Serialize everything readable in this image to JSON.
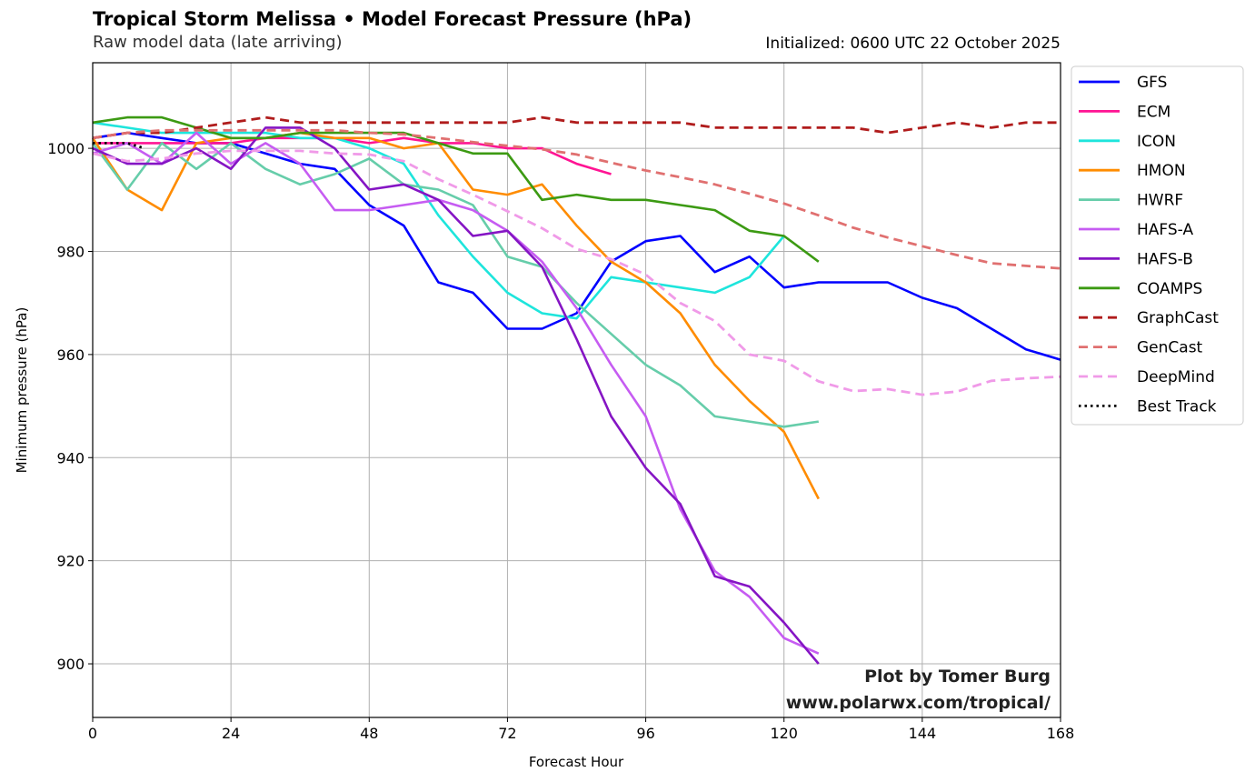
{
  "header": {
    "title": "Tropical Storm Melissa • Model Forecast Pressure (hPa)",
    "subtitle_left": "Raw model data (late arriving)",
    "subtitle_right": "Initialized: 0600 UTC 22 October 2025"
  },
  "watermark": {
    "line1": "Plot by Tomer Burg",
    "line2": "www.polarwx.com/tropical/"
  },
  "chart_data": {
    "type": "line",
    "title": "Tropical Storm Melissa • Model Forecast Pressure (hPa)",
    "subtitle": "Raw model data (late arriving)",
    "annotation": "Initialized: 0600 UTC 22 October 2025",
    "xlabel": "Forecast Hour",
    "ylabel": "Minimum pressure (hPa)",
    "xlim": [
      0,
      168
    ],
    "ylim": [
      889.6,
      1016.6
    ],
    "xticks": [
      0,
      24,
      48,
      72,
      96,
      120,
      144,
      168
    ],
    "yticks": [
      900,
      920,
      940,
      960,
      980,
      1000
    ],
    "grid": true,
    "legend_position": "outside-right-top",
    "series": [
      {
        "name": "GFS",
        "color": "#0000ff",
        "dash": "solid",
        "x": [
          0,
          6,
          12,
          18,
          24,
          30,
          36,
          42,
          48,
          54,
          60,
          66,
          72,
          78,
          84,
          90,
          96,
          102,
          108,
          114,
          120,
          126,
          132,
          138,
          144,
          150,
          156,
          162,
          168
        ],
        "y": [
          1002,
          1003,
          1002,
          1001,
          1001,
          999,
          997,
          996,
          989,
          985,
          974,
          972,
          965,
          965,
          968,
          978,
          982,
          983,
          976,
          979,
          973,
          974,
          974,
          974,
          971,
          969,
          965,
          961,
          959
        ]
      },
      {
        "name": "ECM",
        "color": "#ff1493",
        "dash": "solid",
        "x": [
          0,
          6,
          12,
          18,
          24,
          30,
          36,
          42,
          48,
          54,
          60,
          66,
          72,
          78,
          84,
          90
        ],
        "y": [
          1001,
          1001,
          1001,
          1001,
          1001,
          1002,
          1002,
          1002,
          1001,
          1002,
          1001,
          1001,
          1000,
          1000,
          997,
          995
        ]
      },
      {
        "name": "ICON",
        "color": "#1ee5dc",
        "dash": "solid",
        "x": [
          0,
          6,
          12,
          18,
          24,
          30,
          36,
          42,
          48,
          54,
          60,
          66,
          72,
          78,
          84,
          90,
          96,
          102,
          108,
          114,
          120
        ],
        "y": [
          1005,
          1004,
          1003,
          1003,
          1003,
          1003,
          1002,
          1002,
          1000,
          997,
          987,
          979,
          972,
          968,
          967,
          975,
          974,
          973,
          972,
          975,
          983
        ]
      },
      {
        "name": "HMON",
        "color": "#ff8c00",
        "dash": "solid",
        "x": [
          0,
          6,
          12,
          18,
          24,
          30,
          36,
          42,
          48,
          54,
          60,
          66,
          72,
          78,
          84,
          90,
          96,
          102,
          108,
          114,
          120,
          126
        ],
        "y": [
          1002,
          992,
          988,
          1001,
          1002,
          1002,
          1003,
          1002,
          1002,
          1000,
          1001,
          992,
          991,
          993,
          985,
          978,
          974,
          968,
          958,
          951,
          945,
          932
        ]
      },
      {
        "name": "HWRF",
        "color": "#66cdaa",
        "dash": "solid",
        "x": [
          0,
          6,
          12,
          18,
          24,
          30,
          36,
          42,
          48,
          54,
          60,
          66,
          72,
          78,
          84,
          90,
          96,
          102,
          108,
          114,
          120,
          126
        ],
        "y": [
          1001,
          992,
          1001,
          996,
          1001,
          996,
          993,
          995,
          998,
          993,
          992,
          989,
          979,
          977,
          970,
          964,
          958,
          954,
          948,
          947,
          946,
          947
        ]
      },
      {
        "name": "HAFS-A",
        "color": "#c65cf2",
        "dash": "solid",
        "x": [
          0,
          6,
          12,
          18,
          24,
          30,
          36,
          42,
          48,
          54,
          60,
          66,
          72,
          78,
          84,
          90,
          96,
          102,
          108,
          114,
          120,
          126
        ],
        "y": [
          999,
          1001,
          997,
          1003,
          997,
          1001,
          997,
          988,
          988,
          989,
          990,
          988,
          984,
          978,
          969,
          958,
          948,
          930,
          918,
          913,
          905,
          902
        ]
      },
      {
        "name": "HAFS-B",
        "color": "#8515c4",
        "dash": "solid",
        "x": [
          0,
          6,
          12,
          18,
          24,
          30,
          36,
          42,
          48,
          54,
          60,
          66,
          72,
          78,
          84,
          90,
          96,
          102,
          108,
          114,
          120,
          126
        ],
        "y": [
          1000,
          997,
          997,
          1000,
          996,
          1004,
          1004,
          1000,
          992,
          993,
          990,
          983,
          984,
          977,
          963,
          948,
          938,
          931,
          917,
          915,
          908,
          900
        ]
      },
      {
        "name": "COAMPS",
        "color": "#3c9a13",
        "dash": "solid",
        "x": [
          0,
          6,
          12,
          18,
          24,
          30,
          36,
          42,
          48,
          54,
          60,
          66,
          72,
          78,
          84,
          90,
          96,
          102,
          108,
          114,
          120,
          126
        ],
        "y": [
          1005,
          1006,
          1006,
          1004,
          1002,
          1002,
          1003,
          1003,
          1003,
          1003,
          1001,
          999,
          999,
          990,
          991,
          990,
          990,
          989,
          988,
          984,
          983,
          978
        ]
      },
      {
        "name": "GraphCast",
        "color": "#b01c1c",
        "dash": "dashed",
        "x": [
          0,
          6,
          12,
          18,
          24,
          30,
          36,
          42,
          48,
          54,
          60,
          66,
          72,
          78,
          84,
          90,
          96,
          102,
          108,
          114,
          120,
          126,
          132,
          138,
          144,
          150,
          156,
          162,
          168
        ],
        "y": [
          1002,
          1003,
          1003,
          1004,
          1005,
          1006,
          1005,
          1005,
          1005,
          1005,
          1005,
          1005,
          1005,
          1006,
          1005,
          1005,
          1005,
          1005,
          1004,
          1004,
          1004,
          1004,
          1004,
          1003,
          1004,
          1005,
          1004,
          1005,
          1005
        ]
      },
      {
        "name": "GenCast",
        "color": "#e07070",
        "dash": "dashed",
        "x": [
          0,
          6,
          12,
          18,
          24,
          30,
          36,
          42,
          48,
          54,
          60,
          66,
          72,
          78,
          84,
          90,
          96,
          102,
          108,
          114,
          120,
          126,
          132,
          138,
          144,
          150,
          156,
          162,
          168
        ],
        "y": [
          1002,
          1003,
          1003.5,
          1003.5,
          1003.5,
          1003.5,
          1003.5,
          1003.5,
          1003,
          1002.7,
          1002,
          1001.2,
          1000.5,
          999.8,
          998.8,
          997.2,
          995.7,
          994.4,
          993,
          991.2,
          989.3,
          987,
          984.6,
          982.7,
          981,
          979.3,
          977.7,
          977.2,
          976.7
        ]
      },
      {
        "name": "DeepMind",
        "color": "#f09ae8",
        "dash": "dashed",
        "x": [
          0,
          6,
          12,
          18,
          24,
          30,
          36,
          42,
          48,
          54,
          60,
          66,
          72,
          78,
          84,
          90,
          96,
          102,
          108,
          114,
          120,
          126,
          132,
          138,
          144,
          150,
          156,
          162,
          168
        ],
        "y": [
          999,
          997.5,
          998,
          999,
          999.5,
          999.5,
          999.5,
          999,
          998.8,
          997.5,
          994,
          991,
          987.8,
          984.5,
          980.5,
          978.5,
          975.5,
          970,
          966.5,
          960,
          958.8,
          954.8,
          952.9,
          953.3,
          952.2,
          952.8,
          954.9,
          955.4,
          955.7
        ]
      },
      {
        "name": "Best Track",
        "color": "#000000",
        "dash": "dotted",
        "x": [
          0,
          6,
          9
        ],
        "y": [
          1001,
          1001,
          1000
        ]
      }
    ]
  }
}
